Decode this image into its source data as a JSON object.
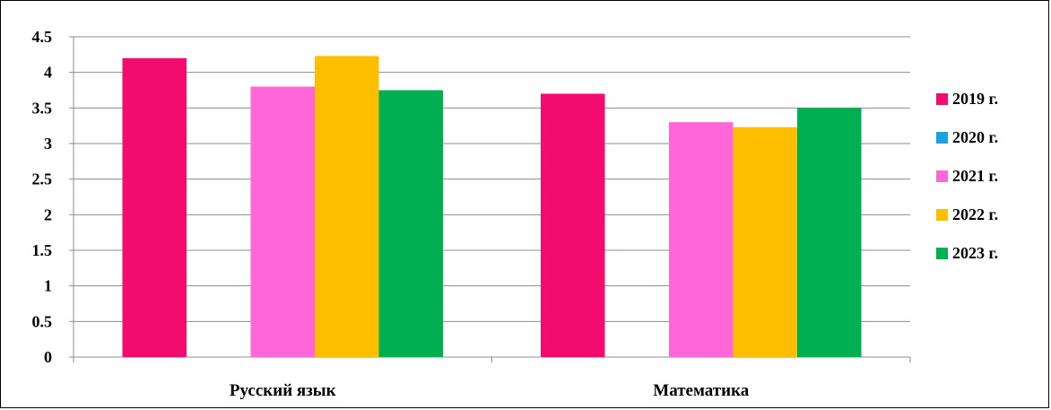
{
  "chart_data": {
    "type": "bar",
    "title": "",
    "categories": [
      "Русский язык",
      "Математика"
    ],
    "series": [
      {
        "name": "2019 г.",
        "color": "#F20C6E",
        "values": [
          4.2,
          3.7
        ]
      },
      {
        "name": "2020 г.",
        "color": "#1CA0E0",
        "values": [
          null,
          null
        ]
      },
      {
        "name": "2021 г.",
        "color": "#FF66D8",
        "values": [
          3.8,
          3.3
        ]
      },
      {
        "name": "2022 г.",
        "color": "#FFBF00",
        "values": [
          4.23,
          3.23
        ]
      },
      {
        "name": "2023 г.",
        "color": "#00AF50",
        "values": [
          3.75,
          3.5
        ]
      }
    ],
    "yticks": [
      "0",
      "0.5",
      "1",
      "1.5",
      "2",
      "2.5",
      "3",
      "3.5",
      "4",
      "4.5"
    ],
    "ylim": [
      0,
      4.5
    ],
    "grid": true,
    "legend_position": "right",
    "xlabel": "",
    "ylabel": ""
  }
}
